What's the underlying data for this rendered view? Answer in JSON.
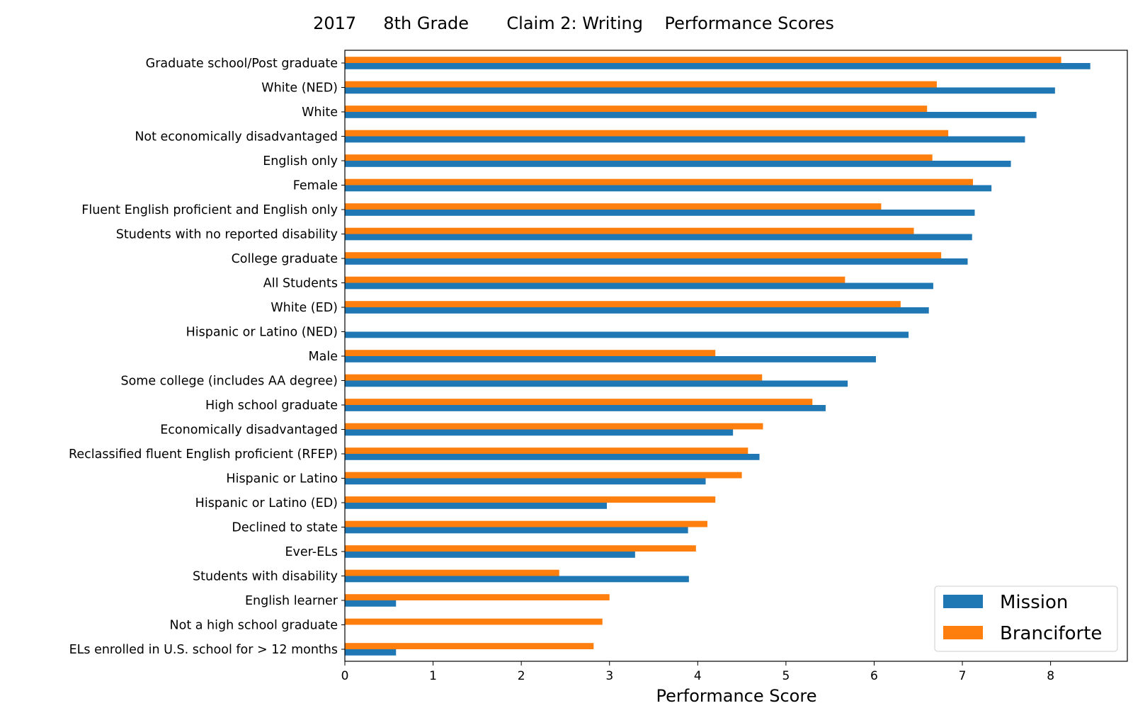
{
  "chart_data": {
    "type": "bar",
    "orientation": "horizontal",
    "title": "2017     8th Grade       Claim 2: Writing    Performance Scores",
    "xlabel": "Performance Score",
    "ylabel": "",
    "xlim": [
      0,
      8.87
    ],
    "xticks": [
      "0",
      "1",
      "2",
      "3",
      "4",
      "5",
      "6",
      "7",
      "8"
    ],
    "grid": false,
    "legend_position": "bottom-right",
    "categories": [
      "Graduate school/Post graduate",
      "White (NED)",
      "White",
      "Not economically disadvantaged",
      "English only",
      "Female",
      "Fluent English proficient and English only",
      "Students with no reported disability",
      "College graduate",
      "All Students",
      "White (ED)",
      "Hispanic or Latino (NED)",
      "Male",
      "Some college (includes AA degree)",
      "High school graduate",
      "Economically disadvantaged",
      "Reclassified fluent English proficient (RFEP)",
      "Hispanic or Latino",
      "Hispanic or Latino (ED)",
      "Declined to state",
      "Ever-ELs",
      "Students with disability",
      "English learner",
      "Not a high school graduate",
      "ELs enrolled in U.S. school for > 12 months"
    ],
    "series": [
      {
        "name": "Mission",
        "color": "#1f77b4",
        "values": [
          8.45,
          8.05,
          7.84,
          7.71,
          7.55,
          7.33,
          7.14,
          7.11,
          7.06,
          6.67,
          6.62,
          6.39,
          6.02,
          5.7,
          5.45,
          4.4,
          4.7,
          4.09,
          2.97,
          3.89,
          3.29,
          3.9,
          0.58,
          null,
          0.58
        ]
      },
      {
        "name": "Branciforte",
        "color": "#ff7f0e",
        "values": [
          8.12,
          6.71,
          6.6,
          6.84,
          6.66,
          7.12,
          6.08,
          6.45,
          6.76,
          5.67,
          6.3,
          null,
          4.2,
          4.73,
          5.3,
          4.74,
          4.57,
          4.5,
          4.2,
          4.11,
          3.98,
          2.43,
          3.0,
          2.92,
          2.82
        ]
      }
    ]
  }
}
